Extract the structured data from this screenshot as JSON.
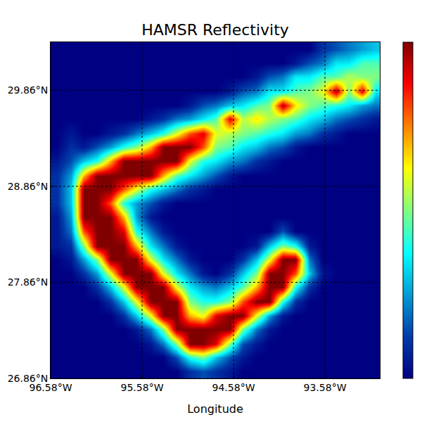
{
  "chart_data": {
    "type": "heatmap",
    "title": "HAMSR Reflectivity",
    "x_label": "Longitude",
    "color": "Jet",
    "grid": true,
    "xlim": [
      -96.58,
      -92.98
    ],
    "ylim": [
      26.86,
      30.36
    ],
    "xticks": [
      {
        "value": -96.58,
        "label": "96.58°W"
      },
      {
        "value": -95.58,
        "label": "95.58°W"
      },
      {
        "value": -94.58,
        "label": "94.58°W"
      },
      {
        "value": -93.58,
        "label": "93.58°W"
      }
    ],
    "yticks": [
      {
        "value": 26.86,
        "label": "26.86°N"
      },
      {
        "value": 27.86,
        "label": "27.86°N"
      },
      {
        "value": 28.86,
        "label": "28.86°N"
      },
      {
        "value": 29.86,
        "label": "29.86°N"
      }
    ],
    "colorbar_range": [
      0,
      10
    ],
    "x": [
      -96.51,
      -96.36,
      -96.22,
      -96.07,
      -95.93,
      -95.78,
      -95.64,
      -95.49,
      -95.35,
      -95.2,
      -95.06,
      -94.91,
      -94.77,
      -94.62,
      -94.48,
      -94.33,
      -94.19,
      -94.04,
      -93.9,
      -93.75,
      -93.61,
      -93.46,
      -93.32,
      -93.17,
      -93.03
    ],
    "y": [
      26.93,
      27.08,
      27.22,
      27.37,
      27.51,
      27.66,
      27.81,
      27.95,
      28.1,
      28.24,
      28.39,
      28.54,
      28.68,
      28.83,
      28.97,
      29.12,
      29.27,
      29.41,
      29.56,
      29.7,
      29.85,
      30.0,
      30.14,
      30.29
    ],
    "z": [
      [
        0,
        0,
        0,
        0,
        0,
        0,
        0,
        0,
        0,
        0,
        1,
        1.5,
        1,
        0.5,
        0,
        0,
        0,
        0,
        0,
        0,
        0,
        0,
        0,
        0,
        0
      ],
      [
        0,
        0,
        0,
        0,
        0,
        0,
        0,
        0,
        0,
        1.5,
        4,
        5,
        3,
        1.5,
        0.5,
        0,
        0,
        0,
        0,
        0,
        0,
        0,
        0,
        0,
        0
      ],
      [
        0,
        0,
        0,
        0,
        0,
        0,
        0,
        0.5,
        2,
        5,
        10,
        10,
        9,
        5,
        1.5,
        0.5,
        0,
        0,
        0,
        0,
        0,
        0,
        0,
        0,
        0
      ],
      [
        0,
        0,
        0,
        0,
        0,
        0,
        0.5,
        2,
        5,
        10,
        10,
        10,
        10,
        10,
        5,
        2,
        0.5,
        0,
        0,
        0,
        0,
        0,
        0,
        0,
        0
      ],
      [
        0,
        0,
        0,
        0,
        0,
        1,
        3,
        6,
        10,
        10,
        7,
        6,
        9,
        10,
        10,
        6,
        2.5,
        0.5,
        0,
        0,
        0,
        0,
        0,
        0,
        0
      ],
      [
        0,
        0,
        0,
        0,
        1,
        3,
        6,
        10,
        10,
        10,
        5,
        4,
        4,
        5,
        8,
        10,
        10,
        4,
        1,
        0,
        0,
        0,
        0,
        0,
        0
      ],
      [
        0,
        0,
        0,
        1,
        3,
        6,
        10,
        10,
        10,
        6,
        3.5,
        2.5,
        2,
        3,
        4.5,
        7,
        10,
        10,
        4,
        1,
        0,
        0,
        0,
        0,
        0
      ],
      [
        0,
        0,
        1,
        2.5,
        6,
        10,
        10,
        10,
        6,
        3.5,
        2,
        0.5,
        0,
        1,
        3,
        5,
        10,
        10,
        8,
        3,
        0.5,
        0,
        0,
        0,
        0
      ],
      [
        0,
        0.5,
        2.5,
        5,
        10,
        10,
        10,
        6,
        3.5,
        2,
        0.5,
        0,
        0,
        0,
        1,
        3,
        6,
        10,
        10,
        2,
        0,
        0,
        0,
        0,
        0
      ],
      [
        0.5,
        1,
        5,
        10,
        10,
        10,
        7,
        3.5,
        2,
        0.5,
        0,
        0,
        0,
        0,
        0,
        0.5,
        3,
        5,
        4,
        0.5,
        0,
        0,
        0,
        0,
        0
      ],
      [
        0.5,
        2,
        8,
        10,
        10,
        9,
        4,
        2,
        0.5,
        0,
        0,
        0,
        0,
        0,
        0,
        0,
        0,
        1.5,
        0,
        0,
        0,
        0,
        0,
        0,
        0
      ],
      [
        0.5,
        2.5,
        10,
        10,
        10,
        7,
        2.5,
        0.5,
        0,
        0,
        0,
        0,
        0,
        0,
        0,
        0,
        0,
        0,
        0,
        0,
        0,
        0,
        0,
        0,
        0
      ],
      [
        1,
        3,
        10,
        10,
        8,
        4,
        2.5,
        1.5,
        0.5,
        0,
        0,
        0,
        0,
        0,
        0,
        0,
        0,
        0,
        0,
        0,
        0,
        0,
        0,
        0,
        0
      ],
      [
        1,
        3,
        10,
        10,
        10,
        8,
        6,
        4,
        3,
        2,
        1,
        0.5,
        0,
        0,
        0,
        0,
        0,
        0,
        0,
        0,
        0,
        0,
        0,
        0,
        0
      ],
      [
        1,
        2.5,
        7,
        10,
        10,
        10,
        10,
        10,
        7,
        4.5,
        3.5,
        2.5,
        1.5,
        0.5,
        0,
        0,
        0,
        0,
        0,
        0,
        0,
        0,
        0,
        0,
        0
      ],
      [
        0.5,
        1.5,
        3,
        4,
        7,
        10,
        10,
        10,
        10,
        10,
        6,
        4,
        3.5,
        2.5,
        2,
        1,
        0.5,
        0,
        0,
        0,
        0,
        0,
        0,
        0,
        0
      ],
      [
        0,
        1,
        0.5,
        1.5,
        2.5,
        4,
        5,
        7,
        10,
        10,
        10,
        8,
        5,
        4.5,
        3.5,
        3,
        2,
        1.5,
        0.5,
        0,
        0,
        0,
        0,
        0,
        0
      ],
      [
        0,
        0.5,
        0,
        0,
        0.5,
        1,
        2,
        3,
        4,
        6,
        8,
        9,
        6,
        5.5,
        5,
        4.5,
        4,
        3.5,
        2.5,
        2,
        1,
        0.5,
        0,
        0,
        0
      ],
      [
        0,
        0,
        0,
        0,
        0,
        0,
        0,
        0.5,
        1,
        2,
        2.5,
        3.5,
        4.5,
        9,
        5.5,
        6.5,
        5.5,
        5,
        4.5,
        3.5,
        3,
        2,
        1.5,
        1,
        0.5
      ],
      [
        0,
        0,
        0,
        0,
        0,
        0,
        0,
        0,
        0,
        0,
        0.5,
        1.5,
        2,
        3,
        3.5,
        4.5,
        5,
        9.5,
        6.5,
        5,
        4.5,
        4,
        3.5,
        2.5,
        2
      ],
      [
        0,
        0,
        0,
        0,
        0,
        0,
        0,
        0,
        0,
        0,
        0,
        0,
        0,
        0.5,
        1.5,
        2,
        3.5,
        3.5,
        4.5,
        5,
        6,
        9.5,
        5,
        9,
        3.5
      ],
      [
        0,
        0,
        0,
        0,
        0,
        0,
        0,
        0,
        0,
        0,
        0,
        0,
        0,
        0,
        0,
        0.5,
        1.5,
        2,
        3.5,
        3.5,
        4.5,
        4.5,
        5.5,
        5,
        5
      ],
      [
        0,
        0,
        0,
        0,
        0,
        0,
        0,
        0,
        0,
        0,
        0,
        0,
        0,
        0,
        0,
        0,
        0,
        0,
        0.5,
        1.5,
        2,
        3.5,
        3.5,
        4.5,
        4.5
      ],
      [
        0,
        0,
        0,
        0,
        0,
        0,
        0,
        0,
        0,
        0,
        0,
        0,
        0,
        0,
        0,
        0,
        0,
        0,
        0,
        0,
        1,
        1.5,
        2,
        2.5,
        3
      ]
    ]
  }
}
